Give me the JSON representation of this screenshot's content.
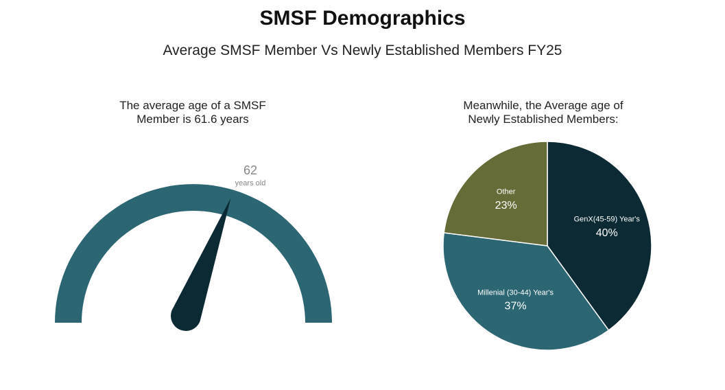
{
  "header": {
    "title": "SMSF Demographics",
    "subtitle": "Average SMSF Member Vs Newly Established Members FY25"
  },
  "chart_data": [
    {
      "type": "gauge",
      "title": "The average age of a SMSF Member is 61.6 years",
      "values": [
        61.6
      ],
      "value_labels": [
        "62"
      ],
      "unit_label": "years old",
      "ylim": [
        0,
        100
      ],
      "color": "#2c6673",
      "needle_color": "#0b2a33"
    },
    {
      "type": "pie",
      "title": "Meanwhile, the Average age of Newly Established Members:",
      "categories": [
        "GenX(45-59) Year's",
        "Millenial (30-44) Year's",
        "Other"
      ],
      "values": [
        40,
        37,
        23
      ],
      "value_labels": [
        "40%",
        "37%",
        "23%"
      ],
      "colors": [
        "#0b2a33",
        "#2c6673",
        "#666c38"
      ]
    }
  ]
}
